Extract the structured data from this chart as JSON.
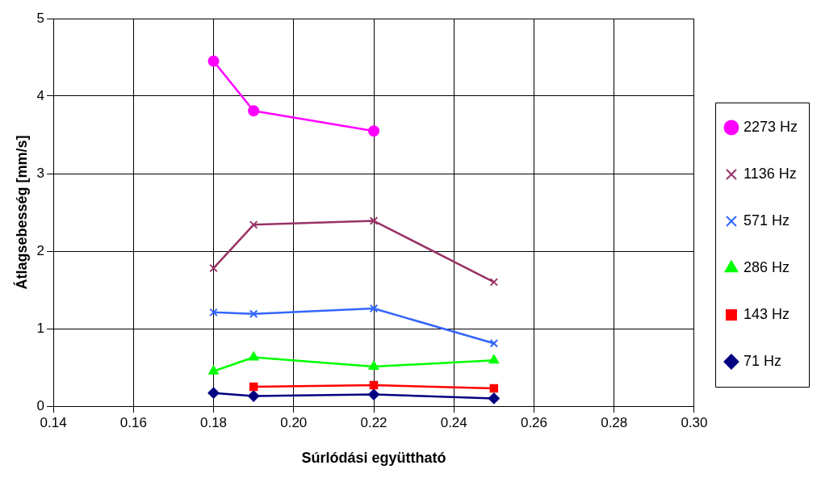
{
  "chart_data": {
    "type": "line",
    "xlabel": "Súrlódási együttható",
    "ylabel": "Átlagsebesség [mm/s]",
    "xlim": [
      0.14,
      0.3
    ],
    "xticks": [
      {
        "value": 0.14,
        "label": "0.14"
      },
      {
        "value": 0.16,
        "label": "0.16"
      },
      {
        "value": 0.18,
        "label": "0.18"
      },
      {
        "value": 0.2,
        "label": "0.20"
      },
      {
        "value": 0.22,
        "label": "0.22"
      },
      {
        "value": 0.24,
        "label": "0.24"
      },
      {
        "value": 0.26,
        "label": "0.26"
      },
      {
        "value": 0.28,
        "label": "0.28"
      },
      {
        "value": 0.3,
        "label": "0.30"
      }
    ],
    "ylim": [
      0,
      5
    ],
    "yticks": [
      0,
      1,
      2,
      3,
      4,
      5
    ],
    "grid": true,
    "legend": "right",
    "series": [
      {
        "name": "2273 Hz",
        "color": "#ff00ff",
        "marker": "circle",
        "x": [
          0.18,
          0.19,
          0.22
        ],
        "values": [
          4.45,
          3.81,
          3.55
        ]
      },
      {
        "name": "1136 Hz",
        "color": "#993366",
        "marker": "cross",
        "x": [
          0.18,
          0.19,
          0.22,
          0.25
        ],
        "values": [
          1.78,
          2.34,
          2.39,
          1.6
        ]
      },
      {
        "name": "571 Hz",
        "color": "#3366ff",
        "marker": "cross",
        "x": [
          0.18,
          0.19,
          0.22,
          0.25
        ],
        "values": [
          1.21,
          1.19,
          1.26,
          0.81
        ]
      },
      {
        "name": "286 Hz",
        "color": "#00ff00",
        "marker": "triangle",
        "x": [
          0.18,
          0.19,
          0.22,
          0.25
        ],
        "values": [
          0.45,
          0.63,
          0.51,
          0.59
        ]
      },
      {
        "name": "143 Hz",
        "color": "#ff0000",
        "marker": "square",
        "x": [
          0.19,
          0.22,
          0.25
        ],
        "values": [
          0.25,
          0.27,
          0.23
        ]
      },
      {
        "name": "71 Hz",
        "color": "#000080",
        "marker": "diamond",
        "x": [
          0.18,
          0.19,
          0.22,
          0.25
        ],
        "values": [
          0.17,
          0.13,
          0.15,
          0.1
        ]
      }
    ]
  }
}
